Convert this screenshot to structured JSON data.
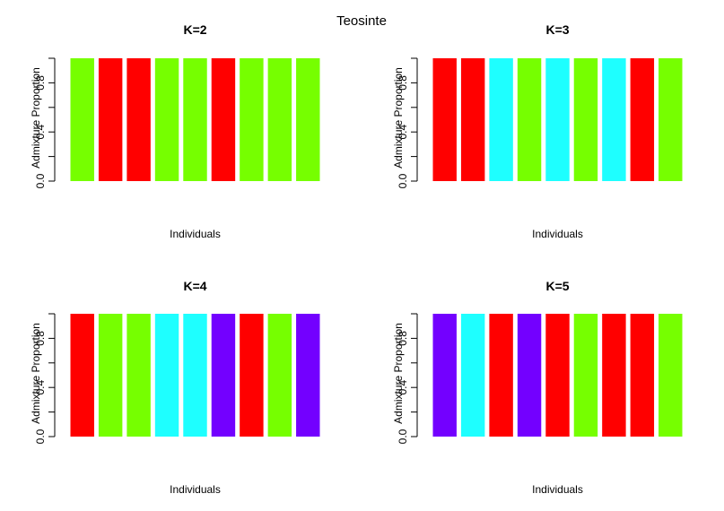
{
  "figure_title": "Teosinte",
  "colors": {
    "green": "#76FF00",
    "red": "#FF0000",
    "cyan": "#1EFFFF",
    "purple": "#7300FF"
  },
  "chart_data": [
    {
      "type": "bar",
      "title": "K=2",
      "xlabel": "Individuals",
      "ylabel": "Admixture Proportion",
      "ylim": [
        0,
        1
      ],
      "yticks": [
        "0.0",
        "0.4",
        "0.8"
      ],
      "yticks_values": [
        0.0,
        0.4,
        0.8
      ],
      "values": [
        1,
        1,
        1,
        1,
        1,
        1,
        1,
        1,
        1
      ],
      "bar_colors": [
        "#76FF00",
        "#FF0000",
        "#FF0000",
        "#76FF00",
        "#76FF00",
        "#FF0000",
        "#76FF00",
        "#76FF00",
        "#76FF00"
      ]
    },
    {
      "type": "bar",
      "title": "K=3",
      "xlabel": "Individuals",
      "ylabel": "Admixture Proportion",
      "ylim": [
        0,
        1
      ],
      "yticks": [
        "0.0",
        "0.4",
        "0.8"
      ],
      "yticks_values": [
        0.0,
        0.4,
        0.8
      ],
      "values": [
        1,
        1,
        1,
        1,
        1,
        1,
        1,
        1,
        1
      ],
      "bar_colors": [
        "#FF0000",
        "#FF0000",
        "#1EFFFF",
        "#76FF00",
        "#1EFFFF",
        "#76FF00",
        "#1EFFFF",
        "#FF0000",
        "#76FF00"
      ]
    },
    {
      "type": "bar",
      "title": "K=4",
      "xlabel": "Individuals",
      "ylabel": "Admixture Proportion",
      "ylim": [
        0,
        1
      ],
      "yticks": [
        "0.0",
        "0.4",
        "0.8"
      ],
      "yticks_values": [
        0.0,
        0.4,
        0.8
      ],
      "values": [
        1,
        1,
        1,
        1,
        1,
        1,
        1,
        1,
        1
      ],
      "bar_colors": [
        "#FF0000",
        "#76FF00",
        "#76FF00",
        "#1EFFFF",
        "#1EFFFF",
        "#7300FF",
        "#FF0000",
        "#76FF00",
        "#7300FF"
      ]
    },
    {
      "type": "bar",
      "title": "K=5",
      "xlabel": "Individuals",
      "ylabel": "Admixture Proportion",
      "ylim": [
        0,
        1
      ],
      "yticks": [
        "0.0",
        "0.4",
        "0.8"
      ],
      "yticks_values": [
        0.0,
        0.4,
        0.8
      ],
      "values": [
        1,
        1,
        1,
        1,
        1,
        1,
        1,
        1,
        1
      ],
      "bar_colors": [
        "#7300FF",
        "#1EFFFF",
        "#FF0000",
        "#7300FF",
        "#FF0000",
        "#76FF00",
        "#FF0000",
        "#FF0000",
        "#76FF00"
      ]
    }
  ]
}
